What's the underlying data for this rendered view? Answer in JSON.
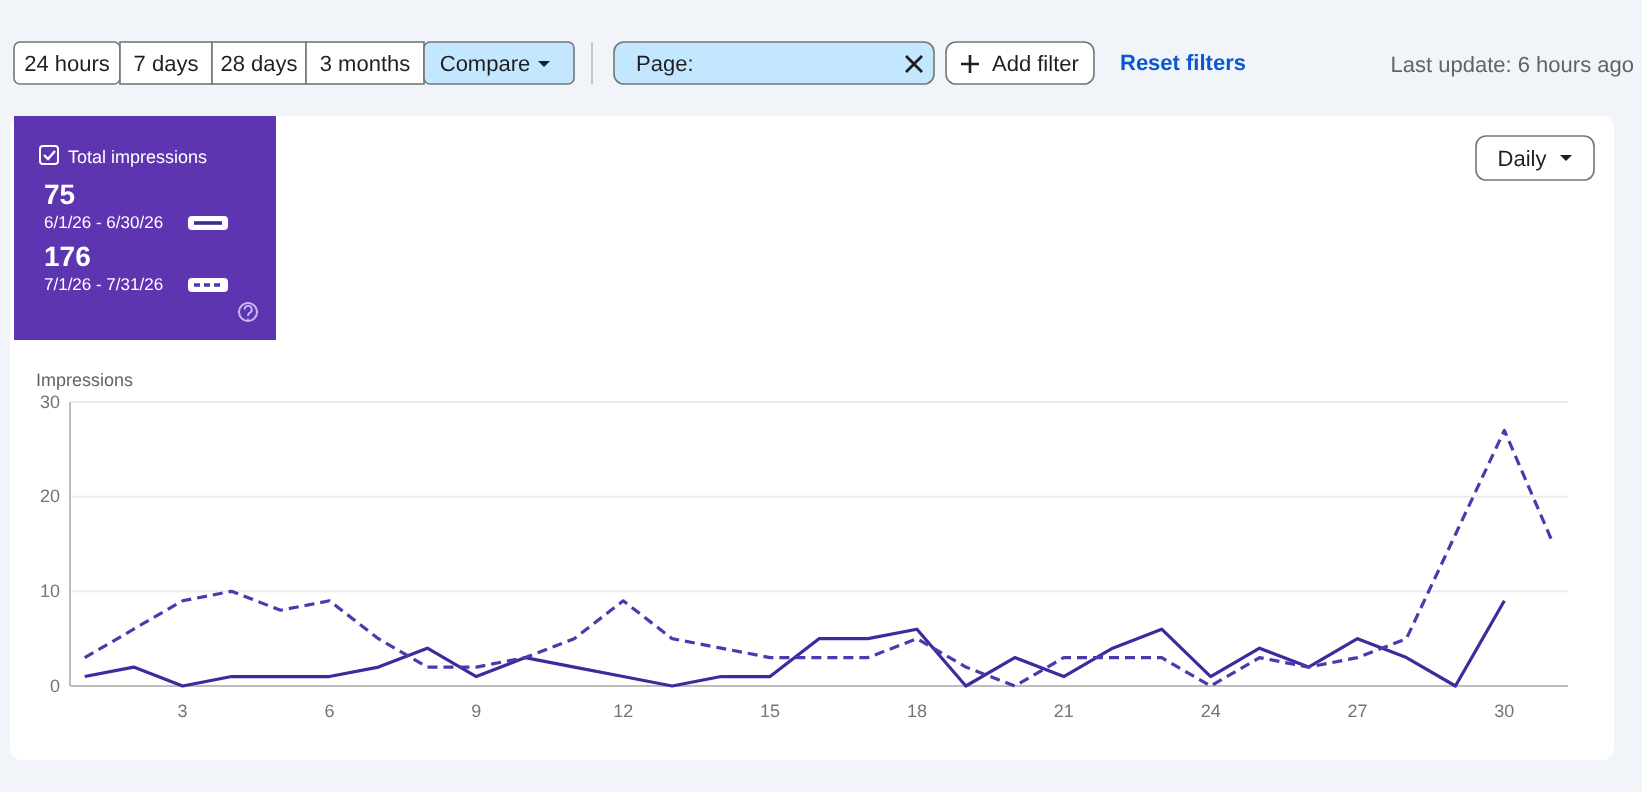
{
  "chart_data": {
    "type": "line",
    "ylabel": "Impressions",
    "legend_title": "Total impressions",
    "annotations": [
      "24 hours",
      "7 days",
      "28 days",
      "3 months",
      "Compare",
      "Page:",
      "Add filter",
      "Reset filters",
      "Last update: 6 hours ago",
      "Daily",
      "75",
      "176"
    ],
    "xlim": [
      0.7,
      31.3
    ],
    "xticks": [
      3,
      6,
      9,
      12,
      15,
      18,
      21,
      24,
      27,
      30
    ],
    "ylim": [
      0,
      30
    ],
    "yticks": [
      0,
      10,
      20,
      30
    ],
    "grid": "y",
    "legend": "top left",
    "marker": "none",
    "series": [
      {
        "name": "6/1/26 - 6/30/26",
        "color": "#3d2a9c",
        "line_style": "solid",
        "x": [
          1,
          2,
          3,
          4,
          5,
          6,
          7,
          8,
          9,
          10,
          11,
          12,
          13,
          14,
          15,
          16,
          17,
          18,
          19,
          20,
          21,
          22,
          23,
          24,
          25,
          26,
          27,
          28,
          29,
          30
        ],
        "values": [
          1,
          2,
          0,
          1,
          1,
          1,
          2,
          4,
          1,
          3,
          2,
          1,
          0,
          1,
          1,
          5,
          5,
          6,
          0,
          3,
          1,
          4,
          6,
          1,
          4,
          2,
          5,
          3,
          0,
          9
        ]
      },
      {
        "name": "7/1/26 - 7/31/26",
        "color": "#4a3aae",
        "line_style": "dashed",
        "x": [
          1,
          2,
          3,
          4,
          5,
          6,
          7,
          8,
          9,
          10,
          11,
          12,
          13,
          14,
          15,
          16,
          17,
          18,
          19,
          20,
          21,
          22,
          23,
          24,
          25,
          26,
          27,
          28,
          29,
          30,
          31
        ],
        "values": [
          3,
          6,
          9,
          10,
          8,
          9,
          5,
          2,
          2,
          3,
          5,
          9,
          5,
          4,
          3,
          3,
          3,
          5,
          2,
          0,
          3,
          3,
          3,
          0,
          3,
          2,
          3,
          5,
          16,
          27,
          15
        ]
      }
    ]
  }
}
